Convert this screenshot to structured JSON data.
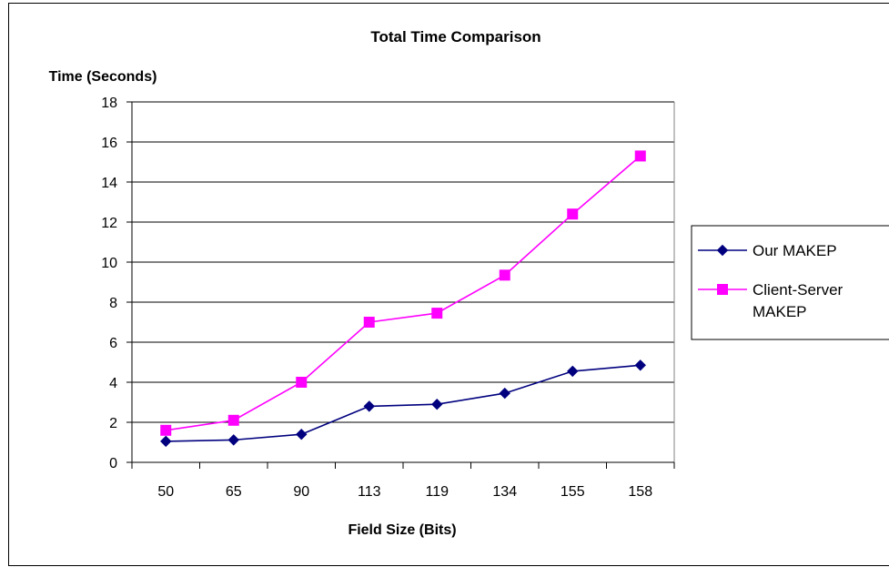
{
  "chart_data": {
    "type": "line",
    "title": "Total Time Comparison",
    "xlabel": "Field Size (Bits)",
    "ylabel": "Time (Seconds)",
    "categories": [
      "50",
      "65",
      "90",
      "113",
      "119",
      "134",
      "155",
      "158"
    ],
    "ylim": [
      0,
      18
    ],
    "yticks": [
      0,
      2,
      4,
      6,
      8,
      10,
      12,
      14,
      16,
      18
    ],
    "grid": true,
    "legend_position": "right",
    "series": [
      {
        "name_lines": [
          "Our MAKEP"
        ],
        "values": [
          1.05,
          1.12,
          1.4,
          2.8,
          2.9,
          3.45,
          4.55,
          4.85
        ],
        "color": "#00007f",
        "marker": "diamond"
      },
      {
        "name_lines": [
          "Client-Server",
          "MAKEP"
        ],
        "values": [
          1.6,
          2.1,
          4.0,
          7.0,
          7.45,
          9.35,
          12.4,
          15.3
        ],
        "color": "#ff00ff",
        "marker": "square"
      }
    ]
  }
}
